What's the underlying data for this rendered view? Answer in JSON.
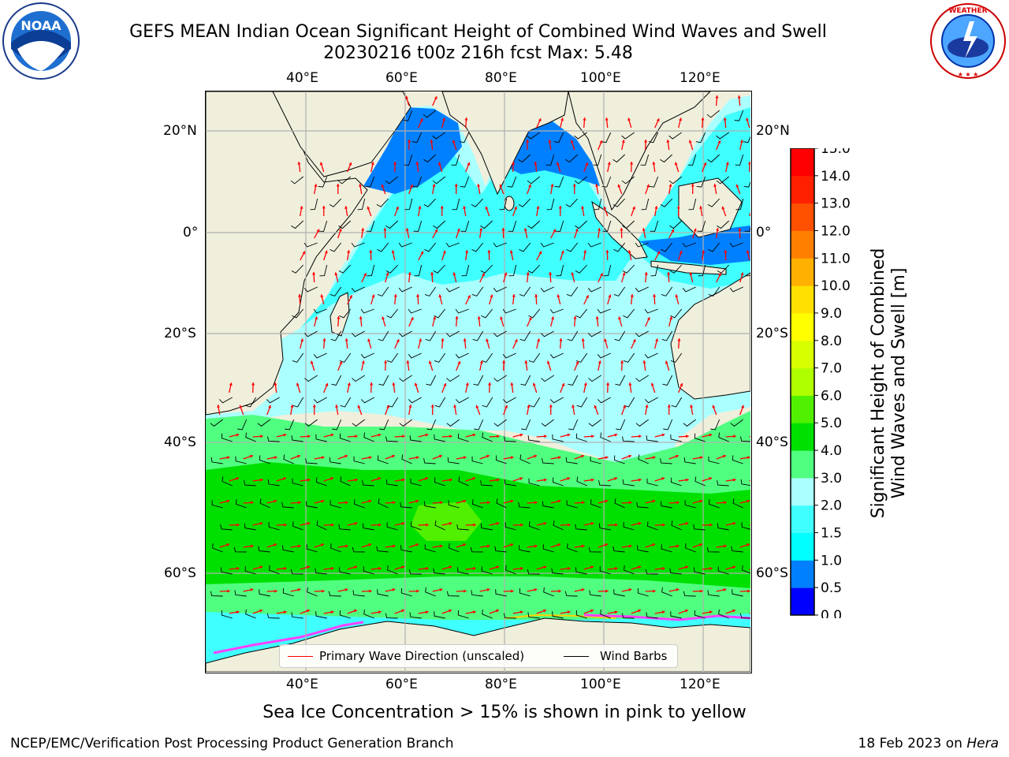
{
  "title": {
    "line1": "GEFS MEAN Indian Ocean Significant Height of Combined Wind Waves and Swell",
    "line2": "20230216 t00z 216h fcst   Max: 5.48"
  },
  "logos": {
    "left": {
      "name": "noaa-logo",
      "text": "NOAA",
      "ring_text": "NATIONAL OCEANIC AND ATMOSPHERIC ADMINISTRATION · U.S. DEPARTMENT OF COMMERCE"
    },
    "right": {
      "name": "nws-logo",
      "ring_text": "NATIONAL WEATHER SERVICE"
    }
  },
  "axes": {
    "lon_ticks": [
      "40°E",
      "60°E",
      "80°E",
      "100°E",
      "120°E"
    ],
    "lat_ticks": [
      "20°N",
      "0°",
      "20°S",
      "40°S",
      "60°S"
    ]
  },
  "map": {
    "extent_lon": [
      20,
      130
    ],
    "extent_lat": [
      -73,
      27
    ],
    "land_color": "#efefdc",
    "grid_color": "#b0b0b0"
  },
  "legend": {
    "primary_wave": "Primary Wave Direction (unscaled)",
    "wind_barbs": "Wind Barbs",
    "primary_color": "#ff0000",
    "barb_color": "#000000"
  },
  "colorbar": {
    "label_line1": "Significant Height of Combined",
    "label_line2": "Wind Waves and Swell [m]",
    "ticks": [
      "0.0",
      "0.5",
      "1.0",
      "1.5",
      "2.0",
      "3.0",
      "4.0",
      "5.0",
      "6.0",
      "7.0",
      "8.0",
      "9.0",
      "10.0",
      "11.0",
      "12.0",
      "13.0",
      "14.0",
      "15.0"
    ],
    "colors": [
      "#0000ff",
      "#0080ff",
      "#00ffff",
      "#40ffff",
      "#aaffff",
      "#50ff80",
      "#00e000",
      "#50f000",
      "#b0ff00",
      "#d8ff00",
      "#ffff00",
      "#ffe000",
      "#ffb000",
      "#ff8000",
      "#ff5000",
      "#ff2000",
      "#ff0000"
    ]
  },
  "caption": "Sea Ice Concentration > 15% is shown in pink to yellow",
  "footer": {
    "left": "NCEP/EMC/Verification Post Processing Product Generation Branch",
    "right_prefix": "18 Feb 2023 on ",
    "right_host": "Hera"
  }
}
